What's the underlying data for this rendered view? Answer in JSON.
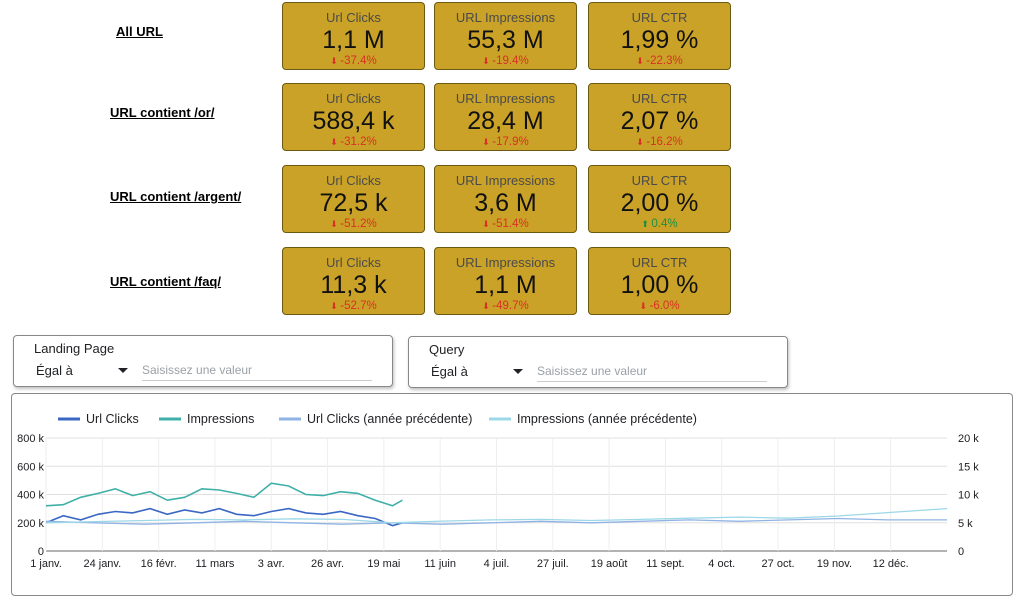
{
  "rows": [
    {
      "label": "All URL",
      "cards": [
        {
          "title": "Url Clicks",
          "value": "1,1 M",
          "delta": "-37.4%",
          "trend": "down"
        },
        {
          "title": "URL Impressions",
          "value": "55,3 M",
          "delta": "-19.4%",
          "trend": "down"
        },
        {
          "title": "URL CTR",
          "value": "1,99 %",
          "delta": "-22.3%",
          "trend": "down"
        }
      ]
    },
    {
      "label": "URL contient /or/",
      "cards": [
        {
          "title": "Url Clicks",
          "value": "588,4 k",
          "delta": "-31.2%",
          "trend": "down"
        },
        {
          "title": "URL Impressions",
          "value": "28,4 M",
          "delta": "-17.9%",
          "trend": "down"
        },
        {
          "title": "URL CTR",
          "value": "2,07 %",
          "delta": "-16.2%",
          "trend": "down"
        }
      ]
    },
    {
      "label": "URL contient /argent/",
      "cards": [
        {
          "title": "Url Clicks",
          "value": "72,5 k",
          "delta": "-51.2%",
          "trend": "down"
        },
        {
          "title": "URL Impressions",
          "value": "3,6 M",
          "delta": "-51.4%",
          "trend": "down"
        },
        {
          "title": "URL CTR",
          "value": "2,00 %",
          "delta": "0.4%",
          "trend": "up"
        }
      ]
    },
    {
      "label": "URL contient /faq/",
      "cards": [
        {
          "title": "Url Clicks",
          "value": "11,3 k",
          "delta": "-52.7%",
          "trend": "down"
        },
        {
          "title": "URL Impressions",
          "value": "1,1 M",
          "delta": "-49.7%",
          "trend": "down"
        },
        {
          "title": "URL CTR",
          "value": "1,00 %",
          "delta": "-6.0%",
          "trend": "down"
        }
      ]
    }
  ],
  "arrows": {
    "down": "⬇",
    "up": "⬆"
  },
  "colors": {
    "card_bg": "#c9a227",
    "negative": "#d93025",
    "positive": "#1e8e3e"
  },
  "filters": [
    {
      "label": "Landing Page",
      "operator": "Égal à",
      "placeholder": "Saisissez une valeur"
    },
    {
      "label": "Query",
      "operator": "Égal à",
      "placeholder": "Saisissez une valeur"
    }
  ],
  "chart_data": {
    "type": "line",
    "legend_position": "top-left",
    "grid": true,
    "x_labels": [
      "1 janv.",
      "24 janv.",
      "16 févr.",
      "11 mars",
      "3 avr.",
      "26 avr.",
      "19 mai",
      "11 juin",
      "4 juil.",
      "27 juil.",
      "19 août",
      "11 sept.",
      "4 oct.",
      "27 oct.",
      "19 nov.",
      "12 déc."
    ],
    "y_left": {
      "ticks": [
        "0",
        "200 k",
        "400 k",
        "600 k",
        "800 k"
      ],
      "range": [
        0,
        800000
      ]
    },
    "y_right": {
      "ticks": [
        "0",
        "5 k",
        "10 k",
        "15 k",
        "20 k"
      ],
      "range": [
        0,
        20000
      ]
    },
    "series": [
      {
        "name": "Url Clicks",
        "color": "#3a66c4",
        "axis": "left",
        "points": [
          [
            0,
            200000
          ],
          [
            7,
            250000
          ],
          [
            14,
            220000
          ],
          [
            21,
            260000
          ],
          [
            28,
            280000
          ],
          [
            35,
            270000
          ],
          [
            42,
            300000
          ],
          [
            49,
            260000
          ],
          [
            56,
            290000
          ],
          [
            63,
            270000
          ],
          [
            70,
            300000
          ],
          [
            77,
            260000
          ],
          [
            84,
            250000
          ],
          [
            91,
            280000
          ],
          [
            98,
            300000
          ],
          [
            105,
            270000
          ],
          [
            112,
            260000
          ],
          [
            119,
            280000
          ],
          [
            126,
            250000
          ],
          [
            133,
            230000
          ],
          [
            140,
            180000
          ],
          [
            144,
            200000
          ]
        ]
      },
      {
        "name": "Impressions",
        "color": "#3fb0a8",
        "axis": "right",
        "points": [
          [
            0,
            8000
          ],
          [
            7,
            8200
          ],
          [
            14,
            9500
          ],
          [
            21,
            10200
          ],
          [
            28,
            11000
          ],
          [
            35,
            9800
          ],
          [
            42,
            10500
          ],
          [
            49,
            9000
          ],
          [
            56,
            9500
          ],
          [
            63,
            11000
          ],
          [
            70,
            10800
          ],
          [
            77,
            10200
          ],
          [
            84,
            9500
          ],
          [
            91,
            12000
          ],
          [
            98,
            11500
          ],
          [
            105,
            10000
          ],
          [
            112,
            9800
          ],
          [
            119,
            10500
          ],
          [
            126,
            10200
          ],
          [
            133,
            9000
          ],
          [
            140,
            8000
          ],
          [
            144,
            9000
          ]
        ]
      },
      {
        "name": "Url Clicks (année précédente)",
        "color": "#8fb3e3",
        "axis": "left",
        "points": [
          [
            0,
            210000
          ],
          [
            20,
            200000
          ],
          [
            40,
            190000
          ],
          [
            60,
            200000
          ],
          [
            80,
            210000
          ],
          [
            100,
            200000
          ],
          [
            120,
            190000
          ],
          [
            140,
            200000
          ],
          [
            160,
            190000
          ],
          [
            180,
            200000
          ],
          [
            200,
            210000
          ],
          [
            220,
            200000
          ],
          [
            240,
            210000
          ],
          [
            260,
            220000
          ],
          [
            280,
            210000
          ],
          [
            300,
            220000
          ],
          [
            320,
            230000
          ],
          [
            340,
            220000
          ],
          [
            364,
            220000
          ]
        ]
      },
      {
        "name": "Impressions (année précédente)",
        "color": "#9dd8e8",
        "axis": "right",
        "points": [
          [
            0,
            5000
          ],
          [
            20,
            5200
          ],
          [
            40,
            5400
          ],
          [
            60,
            5600
          ],
          [
            80,
            5500
          ],
          [
            100,
            5700
          ],
          [
            120,
            5600
          ],
          [
            140,
            5000
          ],
          [
            160,
            5300
          ],
          [
            180,
            5500
          ],
          [
            200,
            5600
          ],
          [
            220,
            5400
          ],
          [
            240,
            5600
          ],
          [
            260,
            5800
          ],
          [
            280,
            6000
          ],
          [
            300,
            5800
          ],
          [
            320,
            6200
          ],
          [
            340,
            6800
          ],
          [
            364,
            7500
          ]
        ]
      }
    ]
  }
}
